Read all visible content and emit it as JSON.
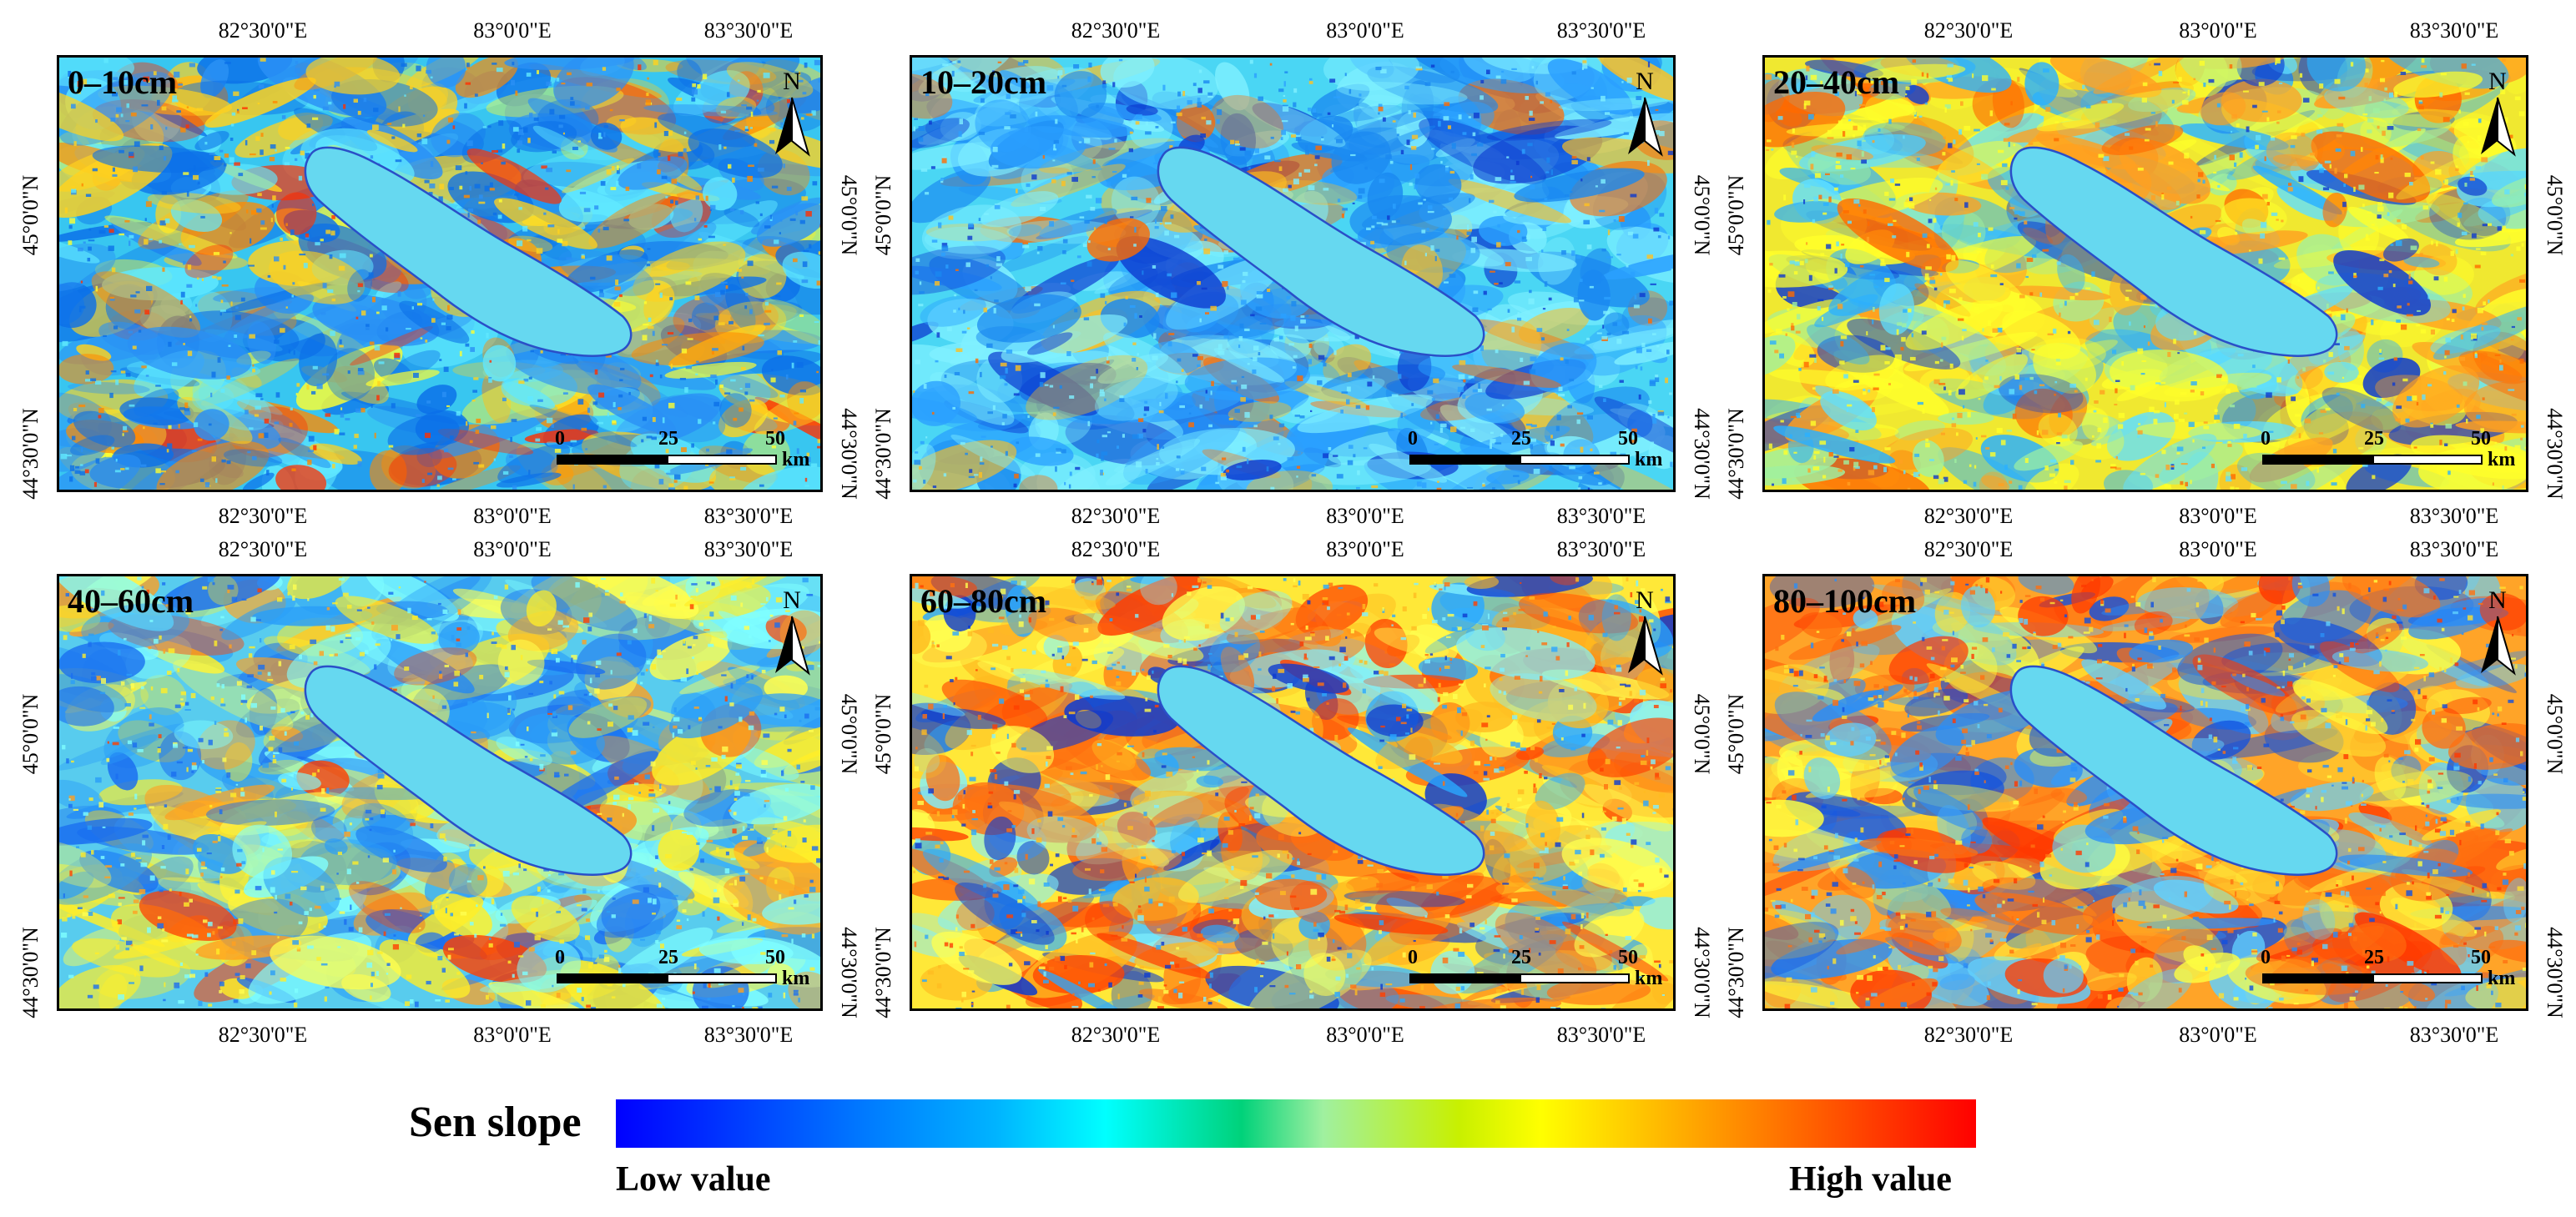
{
  "panels": [
    {
      "depth": "0–10cm"
    },
    {
      "depth": "10–20cm"
    },
    {
      "depth": "20–40cm"
    },
    {
      "depth": "40–60cm"
    },
    {
      "depth": "60–80cm"
    },
    {
      "depth": "80–100cm"
    }
  ],
  "axis": {
    "lon_ticks": [
      "82°30'0\"E",
      "83°0'0\"E",
      "83°30'0\"E"
    ],
    "lat_ticks": [
      "45°0'0\"N",
      "44°30'0\"N"
    ]
  },
  "north": "N",
  "scalebar": {
    "labels": [
      "0",
      "25",
      "50"
    ],
    "unit": "km"
  },
  "legend": {
    "title": "Sen slope",
    "low": "Low value",
    "high": "High value",
    "colors": [
      "#0000ff",
      "#00b4ff",
      "#00ffff",
      "#00d27a",
      "#ffff00",
      "#ffa000",
      "#ff0000"
    ]
  },
  "colors": {
    "lake": "#66d8f0",
    "lake_edge": "#2a4fc8"
  }
}
